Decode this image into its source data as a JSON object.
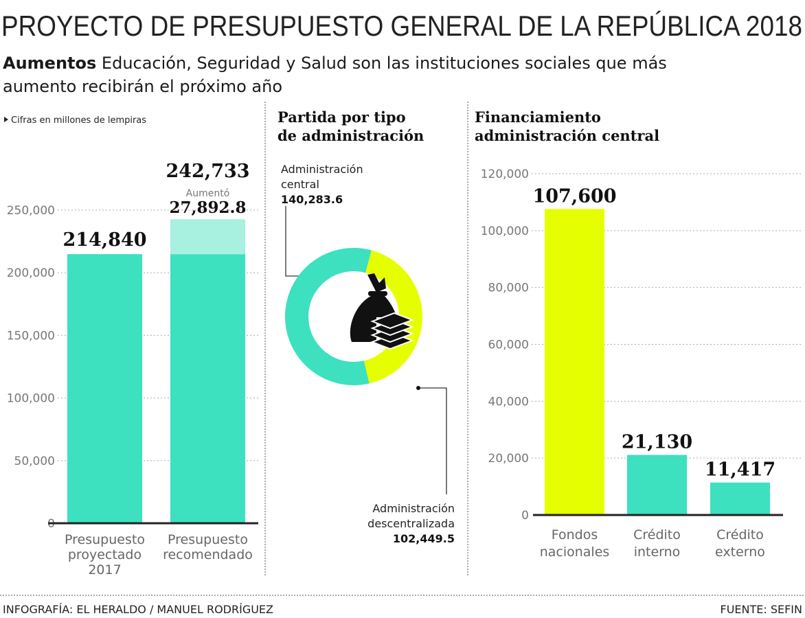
{
  "header": {
    "title": "PROYECTO DE PRESUPUESTO GENERAL DE LA REPÚBLICA 2018",
    "subtitle_bold": "Aumentos",
    "subtitle_line1": "Educación, Seguridad y Salud son las instituciones sociales que más",
    "subtitle_line2": "aumento recibirán el próximo año"
  },
  "colors": {
    "teal": "#3de0bf",
    "teal_light": "#a8f0df",
    "yellow": "#e6ff00"
  },
  "chart_data": [
    {
      "type": "bar",
      "note": "Cifras en millones de lempiras",
      "categories": [
        [
          "Presupuesto",
          "proyectado",
          "2017"
        ],
        [
          "Presupuesto",
          "recomendado"
        ]
      ],
      "values": [
        214840,
        242733
      ],
      "value_labels": [
        "214,840",
        "242,733"
      ],
      "increase": {
        "label": "Aumentó",
        "value": 27892.8,
        "text": "27,892.8"
      },
      "ylim": [
        0,
        250000
      ],
      "yticks": [
        "0",
        "50,000",
        "100,000",
        "150,000",
        "200,000",
        "250,000"
      ],
      "grid": true
    },
    {
      "type": "pie",
      "title": [
        "Partida por tipo",
        "de administración"
      ],
      "slices": [
        {
          "name": [
            "Administración",
            "central"
          ],
          "value": 140283.6,
          "text": "140,283.6",
          "color": "#3de0bf"
        },
        {
          "name": [
            "Administración",
            "descentralizada"
          ],
          "value": 102449.5,
          "text": "102,449.5",
          "color": "#e6ff00"
        }
      ],
      "icon": "money-bag-icon"
    },
    {
      "type": "bar",
      "title": [
        "Financiamiento",
        "administración central"
      ],
      "categories": [
        [
          "Fondos",
          "nacionales"
        ],
        [
          "Crédito",
          "interno"
        ],
        [
          "Crédito",
          "externo"
        ]
      ],
      "values": [
        107600,
        21130,
        11417
      ],
      "value_labels": [
        "107,600",
        "21,130",
        "11,417"
      ],
      "colors": [
        "#e6ff00",
        "#3de0bf",
        "#3de0bf"
      ],
      "ylim": [
        0,
        120000
      ],
      "yticks": [
        "0",
        "20,000",
        "40,000",
        "60,000",
        "80,000",
        "100,000",
        "120,000"
      ],
      "grid": true
    }
  ],
  "footer": {
    "credit": "INFOGRAFÍA: EL HERALDO / MANUEL RODRÍGUEZ",
    "source": "FUENTE: SEFIN"
  }
}
